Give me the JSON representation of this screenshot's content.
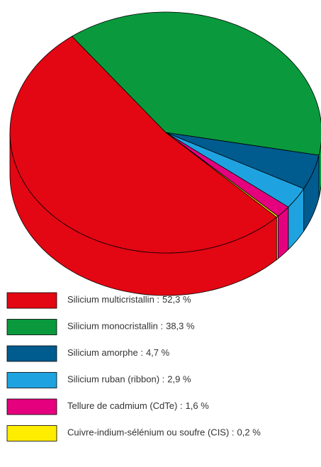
{
  "chart_data": {
    "type": "pie3d",
    "categories": [
      "Silicium multicristallin :",
      "Silicium monocristallin :",
      "Silicium amorphe :",
      "Silicium ruban (ribbon) :",
      "Tellure de cadmium (CdTe) :",
      "Cuivre-indium-sélénium ou soufre (CIS) :"
    ],
    "values": [
      52.3,
      38.3,
      4.7,
      2.9,
      1.6,
      0.2
    ],
    "value_labels": [
      "52,3 %",
      "38,3 %",
      "4,7 %",
      "2,9 %",
      "1,6 %",
      "0,2 %"
    ],
    "colors": [
      "#e30613",
      "#0a9a3d",
      "#005b8f",
      "#1fa3e0",
      "#e5007e",
      "#ffed00"
    ]
  }
}
